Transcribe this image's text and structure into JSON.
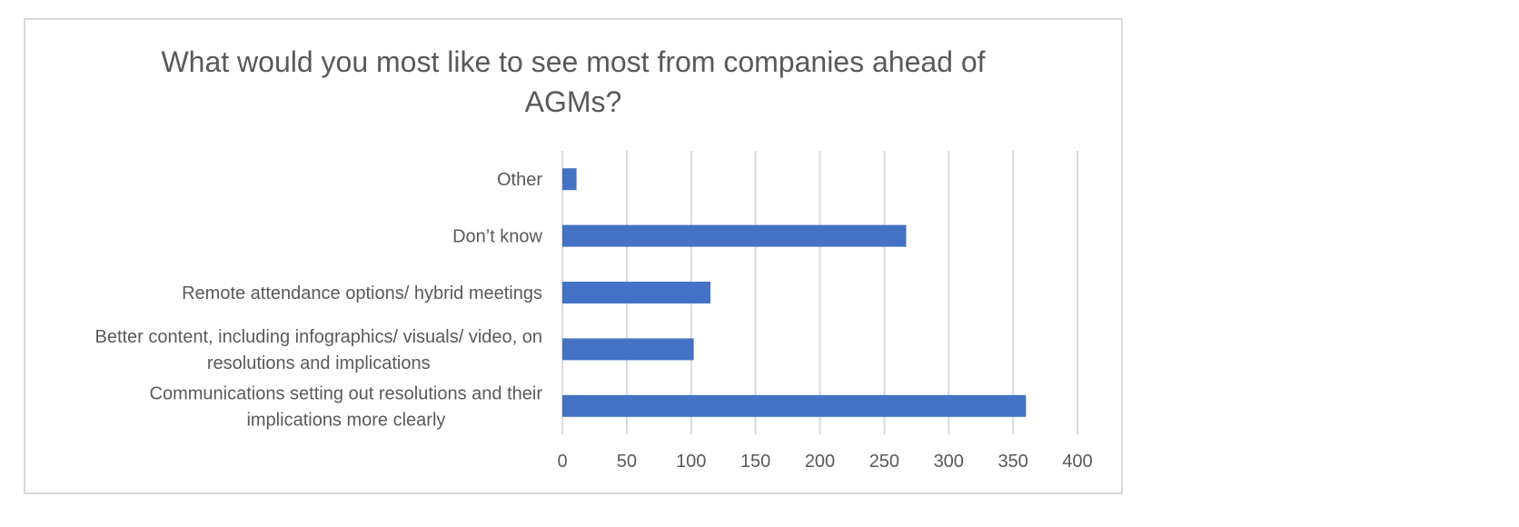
{
  "chart_data": {
    "type": "bar",
    "orientation": "horizontal",
    "title": "What would you most like to see most from companies ahead of AGMs?",
    "categories": [
      [
        "Communications setting out resolutions and their",
        "implications more clearly"
      ],
      [
        "Better content, including infographics/ visuals/ video, on",
        "resolutions and implications"
      ],
      [
        "Remote attendance options/ hybrid meetings"
      ],
      [
        "Don’t know"
      ],
      [
        "Other"
      ]
    ],
    "values": [
      360,
      102,
      115,
      267,
      11
    ],
    "xlim": [
      0,
      400
    ],
    "x_ticks": [
      "0",
      "50",
      "100",
      "150",
      "200",
      "250",
      "300",
      "350",
      "400"
    ],
    "grid": "vertical",
    "legend": "none",
    "bar_color": "#4472c4",
    "grid_color": "#d9d9d9"
  }
}
